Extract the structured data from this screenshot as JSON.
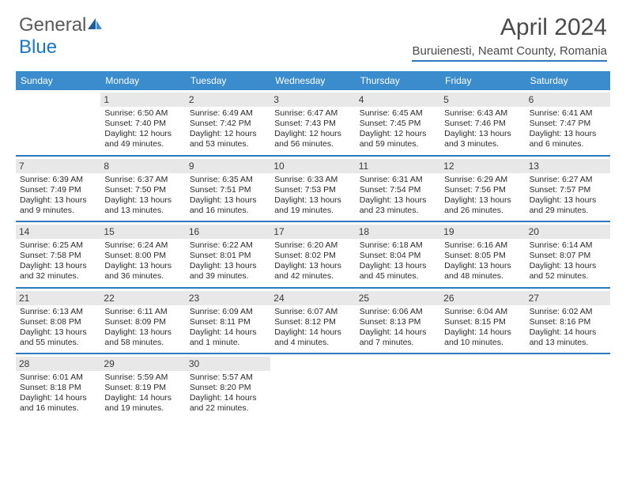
{
  "brand": {
    "part1": "General",
    "part2": "Blue"
  },
  "title": "April 2024",
  "location": "Buruienesti, Neamt County, Romania",
  "colors": {
    "header_bg": "#3a8ccc",
    "accent": "#2b7abf",
    "daynum_bg": "#e8e8e8",
    "text": "#2a2a2a",
    "title_text": "#4a4a4a"
  },
  "day_names": [
    "Sunday",
    "Monday",
    "Tuesday",
    "Wednesday",
    "Thursday",
    "Friday",
    "Saturday"
  ],
  "weeks": [
    [
      {
        "n": "",
        "sr": "",
        "ss": "",
        "dl": ""
      },
      {
        "n": "1",
        "sr": "Sunrise: 6:50 AM",
        "ss": "Sunset: 7:40 PM",
        "dl": "Daylight: 12 hours and 49 minutes."
      },
      {
        "n": "2",
        "sr": "Sunrise: 6:49 AM",
        "ss": "Sunset: 7:42 PM",
        "dl": "Daylight: 12 hours and 53 minutes."
      },
      {
        "n": "3",
        "sr": "Sunrise: 6:47 AM",
        "ss": "Sunset: 7:43 PM",
        "dl": "Daylight: 12 hours and 56 minutes."
      },
      {
        "n": "4",
        "sr": "Sunrise: 6:45 AM",
        "ss": "Sunset: 7:45 PM",
        "dl": "Daylight: 12 hours and 59 minutes."
      },
      {
        "n": "5",
        "sr": "Sunrise: 6:43 AM",
        "ss": "Sunset: 7:46 PM",
        "dl": "Daylight: 13 hours and 3 minutes."
      },
      {
        "n": "6",
        "sr": "Sunrise: 6:41 AM",
        "ss": "Sunset: 7:47 PM",
        "dl": "Daylight: 13 hours and 6 minutes."
      }
    ],
    [
      {
        "n": "7",
        "sr": "Sunrise: 6:39 AM",
        "ss": "Sunset: 7:49 PM",
        "dl": "Daylight: 13 hours and 9 minutes."
      },
      {
        "n": "8",
        "sr": "Sunrise: 6:37 AM",
        "ss": "Sunset: 7:50 PM",
        "dl": "Daylight: 13 hours and 13 minutes."
      },
      {
        "n": "9",
        "sr": "Sunrise: 6:35 AM",
        "ss": "Sunset: 7:51 PM",
        "dl": "Daylight: 13 hours and 16 minutes."
      },
      {
        "n": "10",
        "sr": "Sunrise: 6:33 AM",
        "ss": "Sunset: 7:53 PM",
        "dl": "Daylight: 13 hours and 19 minutes."
      },
      {
        "n": "11",
        "sr": "Sunrise: 6:31 AM",
        "ss": "Sunset: 7:54 PM",
        "dl": "Daylight: 13 hours and 23 minutes."
      },
      {
        "n": "12",
        "sr": "Sunrise: 6:29 AM",
        "ss": "Sunset: 7:56 PM",
        "dl": "Daylight: 13 hours and 26 minutes."
      },
      {
        "n": "13",
        "sr": "Sunrise: 6:27 AM",
        "ss": "Sunset: 7:57 PM",
        "dl": "Daylight: 13 hours and 29 minutes."
      }
    ],
    [
      {
        "n": "14",
        "sr": "Sunrise: 6:25 AM",
        "ss": "Sunset: 7:58 PM",
        "dl": "Daylight: 13 hours and 32 minutes."
      },
      {
        "n": "15",
        "sr": "Sunrise: 6:24 AM",
        "ss": "Sunset: 8:00 PM",
        "dl": "Daylight: 13 hours and 36 minutes."
      },
      {
        "n": "16",
        "sr": "Sunrise: 6:22 AM",
        "ss": "Sunset: 8:01 PM",
        "dl": "Daylight: 13 hours and 39 minutes."
      },
      {
        "n": "17",
        "sr": "Sunrise: 6:20 AM",
        "ss": "Sunset: 8:02 PM",
        "dl": "Daylight: 13 hours and 42 minutes."
      },
      {
        "n": "18",
        "sr": "Sunrise: 6:18 AM",
        "ss": "Sunset: 8:04 PM",
        "dl": "Daylight: 13 hours and 45 minutes."
      },
      {
        "n": "19",
        "sr": "Sunrise: 6:16 AM",
        "ss": "Sunset: 8:05 PM",
        "dl": "Daylight: 13 hours and 48 minutes."
      },
      {
        "n": "20",
        "sr": "Sunrise: 6:14 AM",
        "ss": "Sunset: 8:07 PM",
        "dl": "Daylight: 13 hours and 52 minutes."
      }
    ],
    [
      {
        "n": "21",
        "sr": "Sunrise: 6:13 AM",
        "ss": "Sunset: 8:08 PM",
        "dl": "Daylight: 13 hours and 55 minutes."
      },
      {
        "n": "22",
        "sr": "Sunrise: 6:11 AM",
        "ss": "Sunset: 8:09 PM",
        "dl": "Daylight: 13 hours and 58 minutes."
      },
      {
        "n": "23",
        "sr": "Sunrise: 6:09 AM",
        "ss": "Sunset: 8:11 PM",
        "dl": "Daylight: 14 hours and 1 minute."
      },
      {
        "n": "24",
        "sr": "Sunrise: 6:07 AM",
        "ss": "Sunset: 8:12 PM",
        "dl": "Daylight: 14 hours and 4 minutes."
      },
      {
        "n": "25",
        "sr": "Sunrise: 6:06 AM",
        "ss": "Sunset: 8:13 PM",
        "dl": "Daylight: 14 hours and 7 minutes."
      },
      {
        "n": "26",
        "sr": "Sunrise: 6:04 AM",
        "ss": "Sunset: 8:15 PM",
        "dl": "Daylight: 14 hours and 10 minutes."
      },
      {
        "n": "27",
        "sr": "Sunrise: 6:02 AM",
        "ss": "Sunset: 8:16 PM",
        "dl": "Daylight: 14 hours and 13 minutes."
      }
    ],
    [
      {
        "n": "28",
        "sr": "Sunrise: 6:01 AM",
        "ss": "Sunset: 8:18 PM",
        "dl": "Daylight: 14 hours and 16 minutes."
      },
      {
        "n": "29",
        "sr": "Sunrise: 5:59 AM",
        "ss": "Sunset: 8:19 PM",
        "dl": "Daylight: 14 hours and 19 minutes."
      },
      {
        "n": "30",
        "sr": "Sunrise: 5:57 AM",
        "ss": "Sunset: 8:20 PM",
        "dl": "Daylight: 14 hours and 22 minutes."
      },
      {
        "n": "",
        "sr": "",
        "ss": "",
        "dl": ""
      },
      {
        "n": "",
        "sr": "",
        "ss": "",
        "dl": ""
      },
      {
        "n": "",
        "sr": "",
        "ss": "",
        "dl": ""
      },
      {
        "n": "",
        "sr": "",
        "ss": "",
        "dl": ""
      }
    ]
  ]
}
